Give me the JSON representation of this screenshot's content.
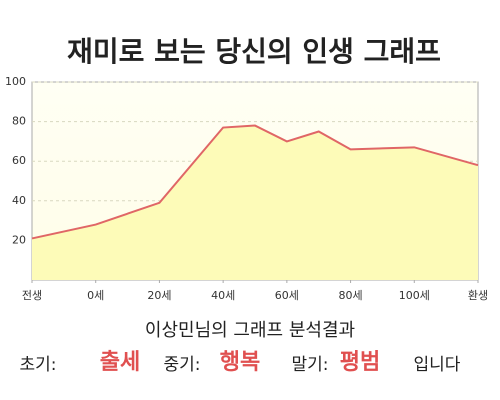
{
  "chart_data": {
    "type": "area",
    "title": "재미로 보는 당신의 인생 그래프",
    "x": [
      -20,
      0,
      20,
      40,
      50,
      60,
      70,
      80,
      100,
      120
    ],
    "series": [
      {
        "name": null,
        "color": "#e06666",
        "fill": "#fdfbb8",
        "values": [
          21,
          28,
          39,
          77,
          78,
          70,
          75,
          66,
          67,
          58
        ]
      }
    ],
    "xlim": [
      -20,
      120
    ],
    "xticks": [
      {
        "value": -20,
        "label": "전생"
      },
      {
        "value": 0,
        "label": "0세"
      },
      {
        "value": 20,
        "label": "20세"
      },
      {
        "value": 40,
        "label": "40세"
      },
      {
        "value": 60,
        "label": "60세"
      },
      {
        "value": 80,
        "label": "80세"
      },
      {
        "value": 100,
        "label": "100세"
      },
      {
        "value": 120,
        "label": "환생"
      }
    ],
    "ylim": [
      0,
      100
    ],
    "yticks": [
      20,
      40,
      60,
      80,
      100
    ],
    "grid": true,
    "subtitle": "이상민님의 그래프 분석결과",
    "summary": [
      {
        "label": "초기:",
        "value": "출세"
      },
      {
        "label": "중기:",
        "value": "행복"
      },
      {
        "label": "말기:",
        "value": "평범"
      }
    ],
    "suffix": "입니다"
  }
}
